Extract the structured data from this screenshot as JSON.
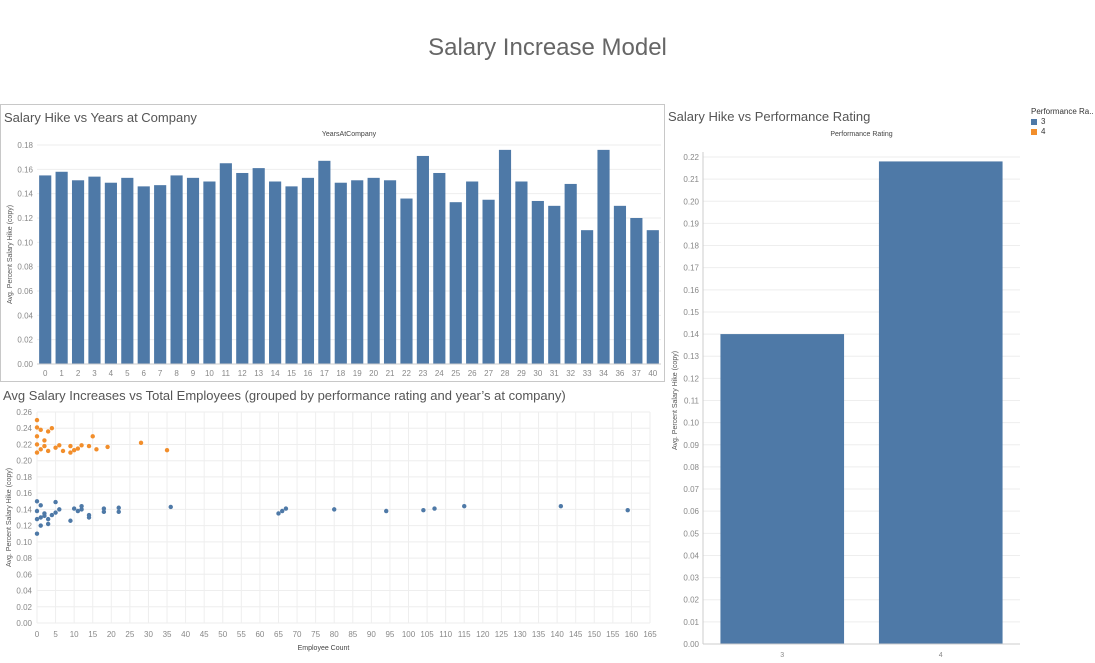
{
  "dashboard_title": "Salary Increase Model",
  "colors": {
    "rating3": "#4e79a7",
    "rating4": "#f28e2b",
    "grid": "#eeeeee",
    "axis": "#cccccc",
    "text": "#888888"
  },
  "legend": {
    "title": "Performance Ra..",
    "items": [
      {
        "label": "3",
        "color": "#4e79a7"
      },
      {
        "label": "4",
        "color": "#f28e2b"
      }
    ]
  },
  "chart_data": [
    {
      "id": "years",
      "type": "bar",
      "title": "Salary Hike vs Years at Company",
      "column_header": "YearsAtCompany",
      "ylabel": "Avg. Percent Salary Hike (copy)",
      "xlabel": "",
      "ylim": [
        0,
        0.18
      ],
      "yticks": [
        "0.00",
        "0.02",
        "0.04",
        "0.06",
        "0.08",
        "0.10",
        "0.12",
        "0.14",
        "0.16",
        "0.18"
      ],
      "categories": [
        "0",
        "1",
        "2",
        "3",
        "4",
        "5",
        "6",
        "7",
        "8",
        "9",
        "10",
        "11",
        "12",
        "13",
        "14",
        "15",
        "16",
        "17",
        "18",
        "19",
        "20",
        "21",
        "22",
        "23",
        "24",
        "25",
        "26",
        "27",
        "28",
        "29",
        "30",
        "31",
        "32",
        "33",
        "34",
        "36",
        "37",
        "40"
      ],
      "values": [
        0.155,
        0.158,
        0.151,
        0.154,
        0.149,
        0.153,
        0.146,
        0.147,
        0.155,
        0.153,
        0.15,
        0.165,
        0.157,
        0.161,
        0.15,
        0.146,
        0.153,
        0.167,
        0.149,
        0.151,
        0.153,
        0.151,
        0.136,
        0.171,
        0.157,
        0.133,
        0.15,
        0.135,
        0.176,
        0.15,
        0.134,
        0.13,
        0.148,
        0.11,
        0.176,
        0.13,
        0.12,
        0.11
      ],
      "grid": true
    },
    {
      "id": "scatter",
      "type": "scatter",
      "title": "Avg Salary Increases vs Total Employees (grouped by performance rating and year’s at company)",
      "xlabel": "Employee Count",
      "ylabel": "Avg. Percent Salary Hike (copy)",
      "xlim": [
        0,
        165
      ],
      "ylim": [
        0,
        0.26
      ],
      "xticks": [
        "0",
        "5",
        "10",
        "15",
        "20",
        "25",
        "30",
        "35",
        "40",
        "45",
        "50",
        "55",
        "60",
        "65",
        "70",
        "75",
        "80",
        "85",
        "90",
        "95",
        "100",
        "105",
        "110",
        "115",
        "120",
        "125",
        "130",
        "135",
        "140",
        "145",
        "150",
        "155",
        "160",
        "165"
      ],
      "yticks": [
        "0.00",
        "0.02",
        "0.04",
        "0.06",
        "0.08",
        "0.10",
        "0.12",
        "0.14",
        "0.16",
        "0.18",
        "0.20",
        "0.22",
        "0.24",
        "0.26"
      ],
      "grid": true,
      "series": [
        {
          "name": "3",
          "color": "#4e79a7",
          "points": [
            {
              "x": 0,
              "y": 0.11
            },
            {
              "x": 0,
              "y": 0.128
            },
            {
              "x": 0,
              "y": 0.138
            },
            {
              "x": 0,
              "y": 0.15
            },
            {
              "x": 1,
              "y": 0.12
            },
            {
              "x": 1,
              "y": 0.13
            },
            {
              "x": 1,
              "y": 0.145
            },
            {
              "x": 2,
              "y": 0.135
            },
            {
              "x": 2,
              "y": 0.132
            },
            {
              "x": 3,
              "y": 0.128
            },
            {
              "x": 3,
              "y": 0.122
            },
            {
              "x": 4,
              "y": 0.133
            },
            {
              "x": 5,
              "y": 0.149
            },
            {
              "x": 5,
              "y": 0.136
            },
            {
              "x": 6,
              "y": 0.14
            },
            {
              "x": 9,
              "y": 0.126
            },
            {
              "x": 10,
              "y": 0.141
            },
            {
              "x": 11,
              "y": 0.138
            },
            {
              "x": 12,
              "y": 0.14
            },
            {
              "x": 12,
              "y": 0.144
            },
            {
              "x": 14,
              "y": 0.13
            },
            {
              "x": 14,
              "y": 0.133
            },
            {
              "x": 18,
              "y": 0.137
            },
            {
              "x": 18,
              "y": 0.141
            },
            {
              "x": 22,
              "y": 0.137
            },
            {
              "x": 22,
              "y": 0.142
            },
            {
              "x": 36,
              "y": 0.143
            },
            {
              "x": 65,
              "y": 0.135
            },
            {
              "x": 66,
              "y": 0.138
            },
            {
              "x": 67,
              "y": 0.141
            },
            {
              "x": 80,
              "y": 0.14
            },
            {
              "x": 94,
              "y": 0.138
            },
            {
              "x": 104,
              "y": 0.139
            },
            {
              "x": 107,
              "y": 0.141
            },
            {
              "x": 115,
              "y": 0.144
            },
            {
              "x": 141,
              "y": 0.144
            },
            {
              "x": 159,
              "y": 0.139
            }
          ]
        },
        {
          "name": "4",
          "color": "#f28e2b",
          "points": [
            {
              "x": 0,
              "y": 0.21
            },
            {
              "x": 0,
              "y": 0.22
            },
            {
              "x": 0,
              "y": 0.23
            },
            {
              "x": 0,
              "y": 0.241
            },
            {
              "x": 0,
              "y": 0.25
            },
            {
              "x": 1,
              "y": 0.214
            },
            {
              "x": 1,
              "y": 0.238
            },
            {
              "x": 2,
              "y": 0.225
            },
            {
              "x": 2,
              "y": 0.218
            },
            {
              "x": 3,
              "y": 0.212
            },
            {
              "x": 3,
              "y": 0.236
            },
            {
              "x": 4,
              "y": 0.24
            },
            {
              "x": 5,
              "y": 0.216
            },
            {
              "x": 6,
              "y": 0.219
            },
            {
              "x": 7,
              "y": 0.212
            },
            {
              "x": 9,
              "y": 0.218
            },
            {
              "x": 9,
              "y": 0.21
            },
            {
              "x": 10,
              "y": 0.213
            },
            {
              "x": 11,
              "y": 0.215
            },
            {
              "x": 12,
              "y": 0.219
            },
            {
              "x": 14,
              "y": 0.218
            },
            {
              "x": 15,
              "y": 0.23
            },
            {
              "x": 16,
              "y": 0.214
            },
            {
              "x": 19,
              "y": 0.217
            },
            {
              "x": 28,
              "y": 0.222
            },
            {
              "x": 35,
              "y": 0.213
            }
          ]
        }
      ]
    },
    {
      "id": "perf",
      "type": "bar",
      "title": "Salary Hike vs Performance Rating",
      "column_header": "Performance Rating",
      "ylabel": "Avg. Percent Salary Hike (copy)",
      "xlabel": "",
      "ylim": [
        0,
        0.22
      ],
      "yticks": [
        "0.00",
        "0.01",
        "0.02",
        "0.03",
        "0.04",
        "0.05",
        "0.06",
        "0.07",
        "0.08",
        "0.09",
        "0.10",
        "0.11",
        "0.12",
        "0.13",
        "0.14",
        "0.15",
        "0.16",
        "0.17",
        "0.18",
        "0.19",
        "0.20",
        "0.21",
        "0.22"
      ],
      "categories": [
        "3",
        "4"
      ],
      "values": [
        0.14,
        0.218
      ],
      "grid": true
    }
  ]
}
